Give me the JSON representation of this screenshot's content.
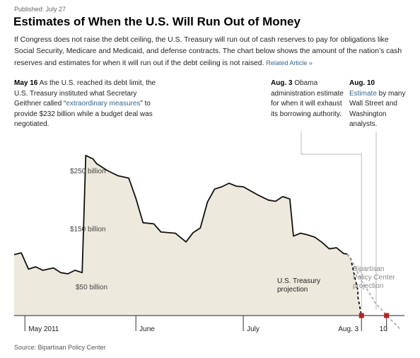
{
  "header": {
    "published": "Published: July 27",
    "title": "Estimates of When the U.S. Will Run Out of Money",
    "intro": "If Congress does not raise the debt ceiling, the U.S. Treasury will run out of cash reserves to pay for obligations like Social Security, Medicare and Medicaid, and defense contracts. The chart below shows the amount of the nation’s cash reserves and estimates for when it will run out if the debt ceiling is not raised.",
    "related_link": "Related Article »"
  },
  "annotations": {
    "may16": {
      "date": "May 16",
      "text_a": " As the U.S. reached its debt limit, the U.S. Treasury instituted what Secretary Geithner called “",
      "link": "extraordinary measures",
      "text_b": "” to provide $232 billion while a budget deal was negotiated."
    },
    "aug3": {
      "date": "Aug. 3",
      "text": " Obama administration estimate for when it will exhaust its borrowing authority."
    },
    "aug10": {
      "date": "Aug. 10",
      "link": "Estimate",
      "text": " by many Wall Street and Washington analysts."
    }
  },
  "source": "Source: Bipartisan Policy Center",
  "colors": {
    "area_fill": "#ede9dd",
    "actual_line": "#111111",
    "treasury_projection": "#111111",
    "bpc_projection": "#aaaaaa",
    "marker": "#b22222",
    "leader_line": "#bbbbbb"
  },
  "chart_data": {
    "type": "line",
    "title": "",
    "xlabel": "",
    "ylabel": "",
    "x_axis_type": "date",
    "xlim": [
      "2011-04-28",
      "2011-08-15"
    ],
    "ylim": [
      0,
      300
    ],
    "y_ticks": [
      {
        "value": 250,
        "label": "$250 billion"
      },
      {
        "value": 150,
        "label": "$150 billion"
      },
      {
        "value": 50,
        "label": "$50 billion"
      }
    ],
    "x_ticks": [
      {
        "date": "2011-05-01",
        "label": "May 2011"
      },
      {
        "date": "2011-06-01",
        "label": "June"
      },
      {
        "date": "2011-07-01",
        "label": "July"
      },
      {
        "date": "2011-08-03",
        "label": "Aug. 3"
      },
      {
        "date": "2011-08-10",
        "label": "10"
      }
    ],
    "grid": false,
    "series": [
      {
        "points": [
          [
            "2011-04-28",
            105
          ],
          [
            "2011-04-30",
            108
          ],
          [
            "2011-05-02",
            80
          ],
          [
            "2011-05-04",
            84
          ],
          [
            "2011-05-06",
            78
          ],
          [
            "2011-05-09",
            82
          ],
          [
            "2011-05-11",
            74
          ],
          [
            "2011-05-13",
            72
          ],
          [
            "2011-05-15",
            78
          ],
          [
            "2011-05-17",
            74
          ],
          [
            "2011-05-18",
            276
          ],
          [
            "2011-05-20",
            270
          ],
          [
            "2011-05-21",
            262
          ],
          [
            "2011-05-24",
            250
          ],
          [
            "2011-05-27",
            241
          ],
          [
            "2011-05-30",
            237
          ],
          [
            "2011-06-01",
            202
          ],
          [
            "2011-06-03",
            160
          ],
          [
            "2011-06-06",
            158
          ],
          [
            "2011-06-08",
            144
          ],
          [
            "2011-06-12",
            142
          ],
          [
            "2011-06-15",
            127
          ],
          [
            "2011-06-17",
            143
          ],
          [
            "2011-06-19",
            151
          ],
          [
            "2011-06-21",
            196
          ],
          [
            "2011-06-23",
            218
          ],
          [
            "2011-06-25",
            222
          ],
          [
            "2011-06-27",
            228
          ],
          [
            "2011-06-29",
            223
          ],
          [
            "2011-07-01",
            222
          ],
          [
            "2011-07-03",
            215
          ],
          [
            "2011-07-05",
            208
          ],
          [
            "2011-07-08",
            199
          ],
          [
            "2011-07-10",
            197
          ],
          [
            "2011-07-12",
            205
          ],
          [
            "2011-07-14",
            201
          ],
          [
            "2011-07-15",
            137
          ],
          [
            "2011-07-17",
            142
          ],
          [
            "2011-07-19",
            139
          ],
          [
            "2011-07-21",
            135
          ],
          [
            "2011-07-23",
            126
          ],
          [
            "2011-07-25",
            115
          ],
          [
            "2011-07-27",
            117
          ],
          [
            "2011-07-29",
            107
          ],
          [
            "2011-07-30",
            106
          ]
        ]
      },
      {
        "name": "U.S. Treasury projection",
        "style": "dashed",
        "points": [
          [
            "2011-07-30",
            106
          ],
          [
            "2011-07-31",
            98
          ],
          [
            "2011-08-01",
            70
          ],
          [
            "2011-08-02",
            43
          ],
          [
            "2011-08-02",
            32
          ],
          [
            "2011-08-03",
            0
          ]
        ]
      },
      {
        "name": "Bipartisan Policy Center projection",
        "style": "dashed",
        "points": [
          [
            "2011-07-30",
            106
          ],
          [
            "2011-08-01",
            87
          ],
          [
            "2011-08-03",
            60
          ],
          [
            "2011-08-05",
            41
          ],
          [
            "2011-08-07",
            20
          ],
          [
            "2011-08-09",
            8
          ],
          [
            "2011-08-10",
            0
          ],
          [
            "2011-08-12",
            -12
          ],
          [
            "2011-08-13",
            -18
          ],
          [
            "2011-08-14",
            -25
          ]
        ]
      }
    ],
    "markers": [
      {
        "date": "2011-08-03",
        "value": 0
      },
      {
        "date": "2011-08-10",
        "value": 0
      }
    ],
    "series_labels": [
      {
        "series": "U.S. Treasury projection",
        "lines": [
          "U.S. Treasury",
          "projection"
        ]
      },
      {
        "series": "Bipartisan Policy Center projection",
        "lines": [
          "Bipartisan",
          "Policy Center",
          "projection"
        ]
      }
    ]
  }
}
